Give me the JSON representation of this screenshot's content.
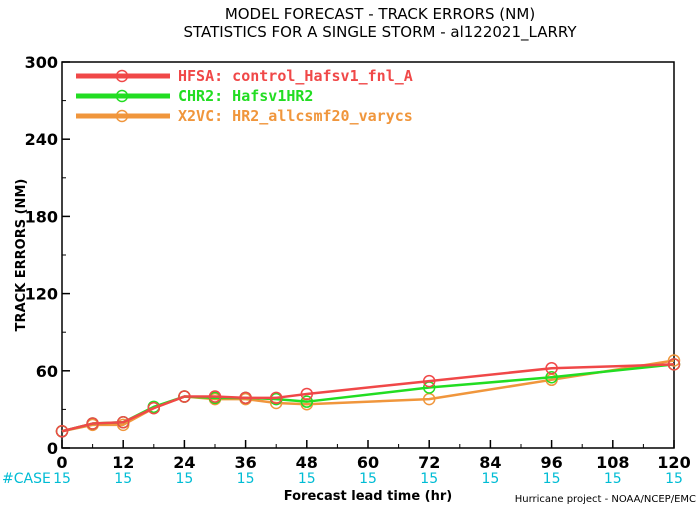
{
  "chart_data": {
    "type": "line",
    "title": "MODEL FORECAST - TRACK ERRORS (NM)",
    "subtitle": "STATISTICS FOR A SINGLE STORM - al122021_LARRY",
    "xlabel": "Forecast lead time (hr)",
    "ylabel": "TRACK ERRORS (NM)",
    "xlim": [
      0,
      120
    ],
    "ylim": [
      0,
      300
    ],
    "xticks": [
      "0",
      "12",
      "24",
      "36",
      "48",
      "60",
      "72",
      "84",
      "96",
      "108",
      "120"
    ],
    "yticks": [
      "0",
      "60",
      "120",
      "180",
      "240",
      "300"
    ],
    "legend_position": "top-left",
    "grid": false,
    "series": [
      {
        "name": "HFSA: control_Hafsv1_fnl_A",
        "color": "#f04848",
        "x": [
          0,
          6,
          12,
          18,
          24,
          30,
          36,
          42,
          48,
          72,
          96,
          120
        ],
        "y": [
          13,
          19,
          20,
          31,
          40,
          40,
          39,
          39,
          42,
          52,
          62,
          65
        ]
      },
      {
        "name": "CHR2: Hafsv1HR2",
        "color": "#22dd22",
        "x": [
          0,
          6,
          12,
          18,
          24,
          30,
          36,
          42,
          48,
          72,
          96,
          120
        ],
        "y": [
          13,
          19,
          20,
          32,
          40,
          39,
          39,
          38,
          36,
          47,
          55,
          65
        ]
      },
      {
        "name": "X2VC: HR2_allcsmf20_varycs",
        "color": "#f0963c",
        "x": [
          0,
          6,
          12,
          18,
          24,
          30,
          36,
          42,
          48,
          72,
          96,
          120
        ],
        "y": [
          13,
          18,
          18,
          31,
          40,
          38,
          38,
          35,
          34,
          38,
          53,
          68
        ]
      }
    ],
    "case_counts": {
      "label": "#CASE",
      "x": [
        0,
        12,
        24,
        36,
        48,
        60,
        72,
        84,
        96,
        108,
        120
      ],
      "values": [
        "15",
        "15",
        "15",
        "15",
        "15",
        "15",
        "15",
        "15",
        "15",
        "15",
        "15"
      ]
    },
    "credit": "Hurricane project - NOAA/NCEP/EMC"
  }
}
